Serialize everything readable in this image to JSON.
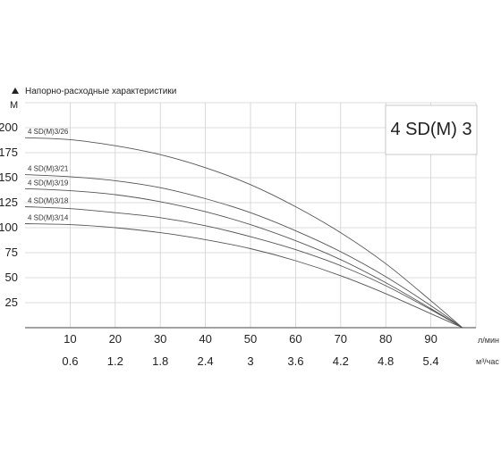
{
  "chart_data": {
    "type": "line",
    "title": "Напорно-расходные характеристики",
    "model_label": "4 SD(M) 3",
    "ylabel": "М",
    "x_unit_primary": "л/мин",
    "x_unit_secondary": "м³/час",
    "x_ticks": [
      "10",
      "20",
      "30",
      "40",
      "50",
      "60",
      "70",
      "80",
      "90"
    ],
    "x_ticks_secondary": [
      "0.6",
      "1.2",
      "1.8",
      "2.4",
      "3",
      "3.6",
      "4.2",
      "4.8",
      "5.4"
    ],
    "y_ticks": [
      "25",
      "50",
      "75",
      "100",
      "125",
      "150",
      "175",
      "200"
    ],
    "xlim": [
      0,
      100
    ],
    "ylim": [
      0,
      225
    ],
    "grid": true,
    "series": [
      {
        "name": "4 SD(M)3/26",
        "x": [
          0,
          10,
          20,
          30,
          40,
          50,
          60,
          70,
          80,
          90,
          97
        ],
        "y": [
          190,
          188,
          182,
          173,
          160,
          143,
          121,
          95,
          64,
          27,
          0
        ]
      },
      {
        "name": "4 SD(M)3/21",
        "x": [
          0,
          10,
          20,
          30,
          40,
          50,
          60,
          70,
          80,
          90,
          97
        ],
        "y": [
          153,
          151,
          147,
          140,
          129,
          115,
          97,
          76,
          51,
          22,
          0
        ]
      },
      {
        "name": "4 SD(M)3/19",
        "x": [
          0,
          10,
          20,
          30,
          40,
          50,
          60,
          70,
          80,
          90,
          97
        ],
        "y": [
          139,
          137,
          133,
          126,
          116,
          103,
          87,
          68,
          45,
          19,
          0
        ]
      },
      {
        "name": "4 SD(M)3/18",
        "x": [
          0,
          10,
          20,
          30,
          40,
          50,
          60,
          70,
          80,
          90,
          97
        ],
        "y": [
          121,
          119,
          115,
          110,
          102,
          91,
          78,
          62,
          42,
          18,
          0
        ]
      },
      {
        "name": "4 SD(M)3/14",
        "x": [
          0,
          10,
          20,
          30,
          40,
          50,
          60,
          70,
          80,
          90,
          97
        ],
        "y": [
          104,
          103,
          100,
          95,
          88,
          79,
          67,
          52,
          34,
          14,
          0
        ]
      }
    ]
  }
}
